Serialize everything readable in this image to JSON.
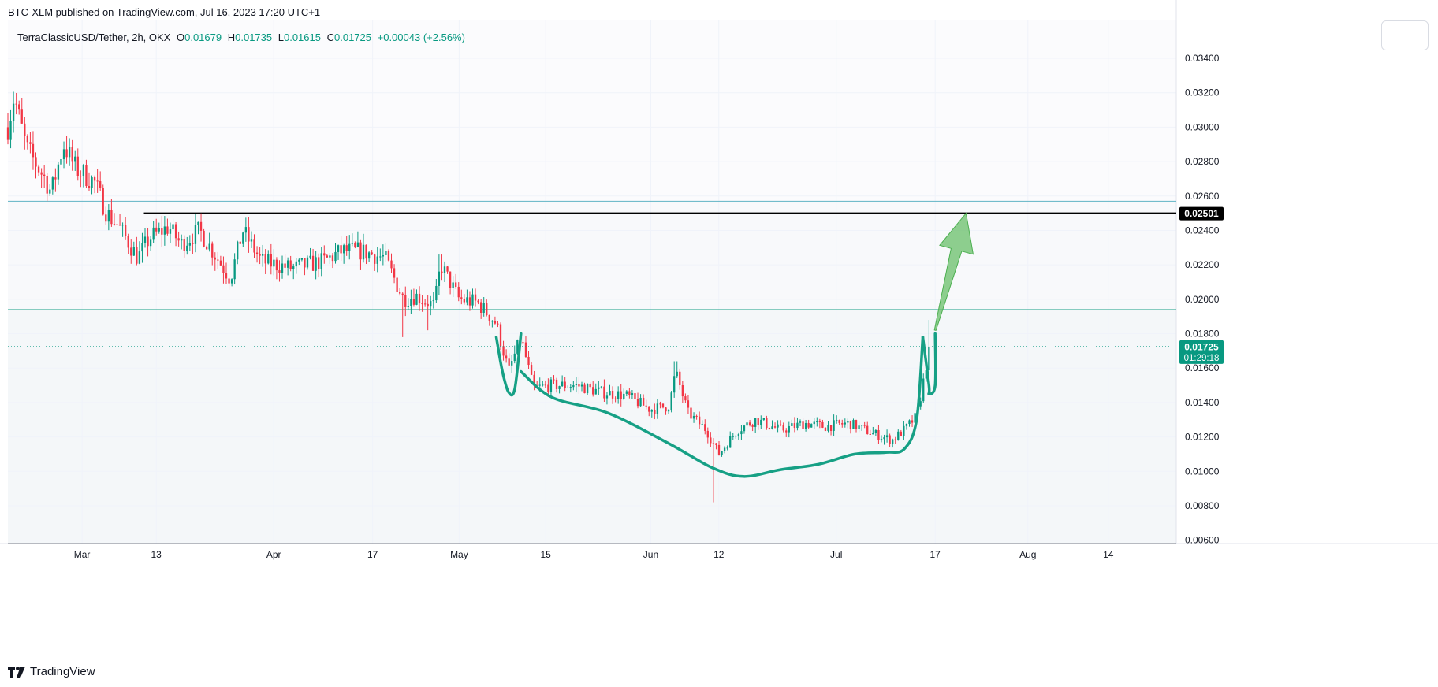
{
  "header": {
    "published_line": "BTC-XLM published on TradingView.com, Jul 16, 2023 17:20 UTC+1"
  },
  "legend": {
    "symbol": "TerraClassicUSD/Tether, 2h, OKX",
    "open_label": "O",
    "open": "0.01679",
    "high_label": "H",
    "high": "0.01735",
    "low_label": "L",
    "low": "0.01615",
    "close_label": "C",
    "close": "0.01725",
    "change": "+0.00043 (+2.56%)"
  },
  "footer": {
    "brand": "TradingView"
  },
  "colors": {
    "up": "#089981",
    "down": "#f23645",
    "annotation": "#16a085",
    "arrow": "#6abf69",
    "resistance_line": "#000000",
    "grid": "#f0f3fa"
  },
  "chart_data": {
    "type": "candlestick",
    "ylim": [
      0.0058,
      0.0362
    ],
    "x_domain_days": [
      "2023-02-17",
      "2023-08-25"
    ],
    "price_ticks": [
      "0.03400",
      "0.03200",
      "0.03000",
      "0.02800",
      "0.02600",
      "0.02400",
      "0.02200",
      "0.02000",
      "0.01800",
      "0.01600",
      "0.01400",
      "0.01200",
      "0.01000",
      "0.00800",
      "0.00600"
    ],
    "time_ticks": [
      {
        "label": "Mar",
        "date": "2023-03-01"
      },
      {
        "label": "13",
        "date": "2023-03-13"
      },
      {
        "label": "Apr",
        "date": "2023-04-01"
      },
      {
        "label": "17",
        "date": "2023-04-17"
      },
      {
        "label": "May",
        "date": "2023-05-01"
      },
      {
        "label": "15",
        "date": "2023-05-15"
      },
      {
        "label": "Jun",
        "date": "2023-06-01"
      },
      {
        "label": "12",
        "date": "2023-06-12"
      },
      {
        "label": "Jul",
        "date": "2023-07-01"
      },
      {
        "label": "17",
        "date": "2023-07-17"
      },
      {
        "label": "Aug",
        "date": "2023-08-01"
      },
      {
        "label": "14",
        "date": "2023-08-14"
      }
    ],
    "horizontal_lines": [
      {
        "price": 0.0257,
        "color": "#5fb3c4"
      },
      {
        "price": 0.025,
        "color": "#000000",
        "start_date": "2023-03-11",
        "label": "0.02501"
      },
      {
        "price": 0.0194,
        "color": "#16a085"
      },
      {
        "price": 0.0058,
        "color": "#787b86"
      }
    ],
    "last_price": {
      "price": 0.01725,
      "label": "0.01725",
      "countdown": "01:29:18"
    },
    "zones": [
      {
        "from": 0.0257,
        "to": 0.0362,
        "color": "#fbfbfd"
      },
      {
        "from": 0.0194,
        "to": 0.0257,
        "color": "#f8f9fb"
      },
      {
        "from": 0.0058,
        "to": 0.0194,
        "color": "#f4f7f9"
      }
    ],
    "price_path": [
      [
        "2023-02-17",
        0.03
      ],
      [
        "2023-02-18",
        0.0318
      ],
      [
        "2023-02-20",
        0.0288
      ],
      [
        "2023-02-23",
        0.027
      ],
      [
        "2023-02-24",
        0.0262
      ],
      [
        "2023-02-26",
        0.029
      ],
      [
        "2023-02-28",
        0.0276
      ],
      [
        "2023-03-03",
        0.0268
      ],
      [
        "2023-03-05",
        0.025
      ],
      [
        "2023-03-07",
        0.0242
      ],
      [
        "2023-03-10",
        0.0224
      ],
      [
        "2023-03-12",
        0.0236
      ],
      [
        "2023-03-15",
        0.0242
      ],
      [
        "2023-03-17",
        0.0232
      ],
      [
        "2023-03-20",
        0.024
      ],
      [
        "2023-03-25",
        0.0212
      ],
      [
        "2023-03-27",
        0.024
      ],
      [
        "2023-03-30",
        0.0222
      ],
      [
        "2023-04-04",
        0.0218
      ],
      [
        "2023-04-09",
        0.0222
      ],
      [
        "2023-04-12",
        0.0228
      ],
      [
        "2023-04-15",
        0.0228
      ],
      [
        "2023-04-19",
        0.0224
      ],
      [
        "2023-04-22",
        0.02
      ],
      [
        "2023-04-24",
        0.0202
      ],
      [
        "2023-04-27",
        0.0196
      ],
      [
        "2023-04-28",
        0.022
      ],
      [
        "2023-05-01",
        0.02
      ],
      [
        "2023-05-04",
        0.0198
      ],
      [
        "2023-05-07",
        0.0186
      ],
      [
        "2023-05-09",
        0.0158
      ],
      [
        "2023-05-11",
        0.0178
      ],
      [
        "2023-05-13",
        0.0148
      ],
      [
        "2023-05-16",
        0.015
      ],
      [
        "2023-05-20",
        0.015
      ],
      [
        "2023-05-24",
        0.0146
      ],
      [
        "2023-05-28",
        0.0144
      ],
      [
        "2023-06-01",
        0.0136
      ],
      [
        "2023-06-04",
        0.0138
      ],
      [
        "2023-06-05",
        0.0158
      ],
      [
        "2023-06-07",
        0.0134
      ],
      [
        "2023-06-10",
        0.0124
      ],
      [
        "2023-06-12",
        0.011
      ],
      [
        "2023-06-15",
        0.0124
      ],
      [
        "2023-06-18",
        0.013
      ],
      [
        "2023-06-22",
        0.0124
      ],
      [
        "2023-06-26",
        0.0128
      ],
      [
        "2023-06-29",
        0.0126
      ],
      [
        "2023-07-03",
        0.0128
      ],
      [
        "2023-07-07",
        0.0122
      ],
      [
        "2023-07-10",
        0.0118
      ],
      [
        "2023-07-12",
        0.0124
      ],
      [
        "2023-07-14",
        0.0132
      ],
      [
        "2023-07-15",
        0.015
      ],
      [
        "2023-07-16",
        0.0172
      ]
    ],
    "candle_range": [
      "2023-02-17",
      "2023-07-16"
    ],
    "candle_count": 330,
    "volatility": 0.00045,
    "spikes": [
      {
        "date": "2023-04-22",
        "low": 0.0178
      },
      {
        "date": "2023-06-11",
        "low": 0.0082
      },
      {
        "date": "2023-06-05",
        "high": 0.0164
      },
      {
        "date": "2023-07-16",
        "high": 0.0188
      },
      {
        "date": "2023-04-28",
        "high": 0.0226
      },
      {
        "date": "2023-04-26",
        "low": 0.0182
      }
    ],
    "annotations": {
      "cup_path": [
        [
          "2023-05-11",
          0.0158
        ],
        [
          "2023-05-16",
          0.0143
        ],
        [
          "2023-05-25",
          0.0134
        ],
        [
          "2023-06-04",
          0.0116
        ],
        [
          "2023-06-11",
          0.0102
        ],
        [
          "2023-06-16",
          0.0097
        ],
        [
          "2023-06-22",
          0.0101
        ],
        [
          "2023-06-28",
          0.0104
        ],
        [
          "2023-07-04",
          0.011
        ],
        [
          "2023-07-09",
          0.0111
        ],
        [
          "2023-07-12",
          0.0113
        ],
        [
          "2023-07-14",
          0.013
        ],
        [
          "2023-07-15",
          0.0178
        ]
      ],
      "left_handle": [
        [
          "2023-05-07",
          0.0178
        ],
        [
          "2023-05-08",
          0.0158
        ],
        [
          "2023-05-09",
          0.0146
        ],
        [
          "2023-05-10",
          0.0148
        ],
        [
          "2023-05-11",
          0.018
        ]
      ],
      "right_handle": [
        [
          "2023-07-15",
          0.0178
        ],
        [
          "2023-07-16",
          0.015
        ],
        [
          "2023-07-16",
          0.0145
        ],
        [
          "2023-07-17",
          0.015
        ],
        [
          "2023-07-17",
          0.018
        ]
      ],
      "arrow": {
        "from": [
          "2023-07-17",
          0.0182
        ],
        "to": [
          "2023-07-22",
          0.025
        ]
      }
    }
  }
}
